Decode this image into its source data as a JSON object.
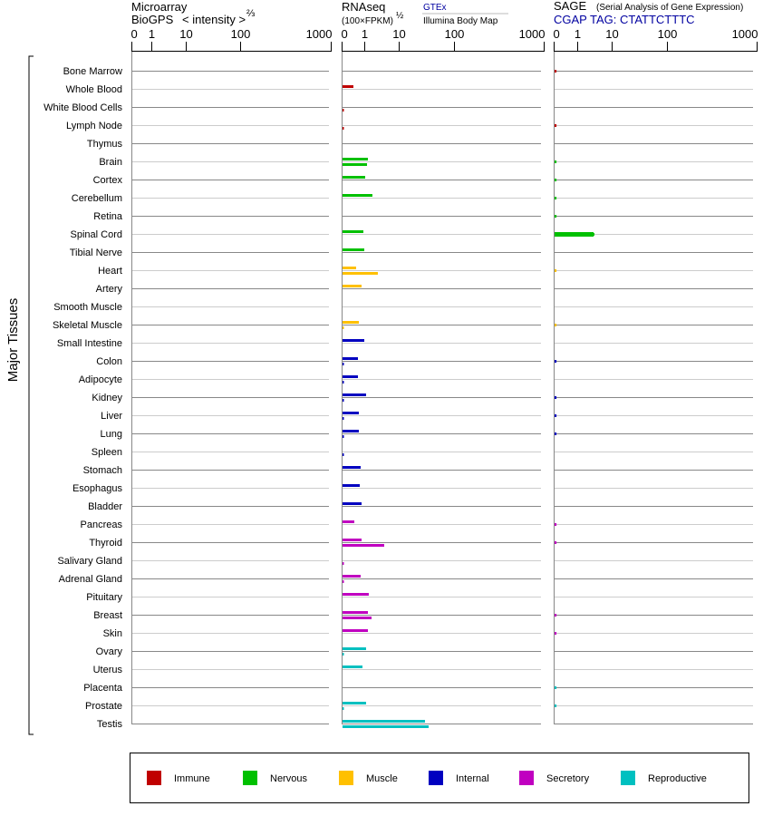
{
  "chart_data": {
    "type": "bar",
    "ylabel": "Major Tissues",
    "categories": [
      "Bone Marrow",
      "Whole Blood",
      "White Blood Cells",
      "Lymph Node",
      "Thymus",
      "Brain",
      "Cortex",
      "Cerebellum",
      "Retina",
      "Spinal Cord",
      "Tibial Nerve",
      "Heart",
      "Artery",
      "Smooth Muscle",
      "Skeletal Muscle",
      "Small Intestine",
      "Colon",
      "Adipocyte",
      "Kidney",
      "Liver",
      "Lung",
      "Spleen",
      "Stomach",
      "Esophagus",
      "Bladder",
      "Pancreas",
      "Thyroid",
      "Salivary Gland",
      "Adrenal Gland",
      "Pituitary",
      "Breast",
      "Skin",
      "Ovary",
      "Uterus",
      "Placenta",
      "Prostate",
      "Testis"
    ],
    "groups": [
      "Immune",
      "Immune",
      "Immune",
      "Immune",
      "Immune",
      "Nervous",
      "Nervous",
      "Nervous",
      "Nervous",
      "Nervous",
      "Nervous",
      "Muscle",
      "Muscle",
      "Muscle",
      "Muscle",
      "Internal",
      "Internal",
      "Internal",
      "Internal",
      "Internal",
      "Internal",
      "Internal",
      "Internal",
      "Internal",
      "Internal",
      "Secretory",
      "Secretory",
      "Secretory",
      "Secretory",
      "Secretory",
      "Secretory",
      "Secretory",
      "Reproductive",
      "Reproductive",
      "Reproductive",
      "Reproductive",
      "Reproductive"
    ],
    "panels": {
      "microarray": {
        "title": "Microarray",
        "subtitle": "BioGPS",
        "scale_label": "< intensity >",
        "scale_exp": "⅔",
        "ticks": [
          "0",
          "1",
          "10",
          "100",
          "1000"
        ],
        "tick_values": [
          0,
          1,
          10,
          100,
          1000
        ],
        "values": [
          null,
          null,
          null,
          null,
          null,
          null,
          null,
          null,
          null,
          null,
          null,
          null,
          null,
          null,
          null,
          null,
          null,
          null,
          null,
          null,
          null,
          null,
          null,
          null,
          null,
          null,
          null,
          null,
          null,
          null,
          null,
          null,
          null,
          null,
          null,
          null,
          null
        ]
      },
      "rnaseq": {
        "title": "RNAseq",
        "unit": "(100×FPKM)",
        "unit_exp": "½",
        "ticks": [
          "0",
          "1",
          "10",
          "100",
          "1000"
        ],
        "tick_values": [
          0,
          1,
          10,
          100,
          1000
        ],
        "series": [
          {
            "name": "GTEx",
            "values": [
              null,
              0.48,
              null,
              null,
              null,
              1.2,
              1.0,
              1.62,
              null,
              0.92,
              0.96,
              0.6,
              0.84,
              null,
              0.72,
              0.96,
              0.68,
              0.68,
              1.06,
              0.72,
              0.72,
              null,
              0.8,
              0.76,
              0.84,
              0.52,
              0.84,
              null,
              0.8,
              1.27,
              1.2,
              1.2,
              1.06,
              0.88,
              null,
              1.06,
              28.8
            ]
          },
          {
            "name": "Illumina Body Map",
            "values": [
              null,
              null,
              0.06,
              0.06,
              null,
              1.13,
              null,
              null,
              null,
              null,
              null,
              2.33,
              null,
              null,
              0.06,
              null,
              0.06,
              0.06,
              0.06,
              0.06,
              0.06,
              0.06,
              null,
              null,
              null,
              null,
              3.57,
              0.06,
              0.06,
              null,
              1.53,
              null,
              0.06,
              null,
              null,
              0.06,
              33.5
            ]
          }
        ]
      },
      "sage": {
        "title": "SAGE",
        "subtitle": "(Serial Analysis of Gene Expression)",
        "tag": "CGAP TAG: CTATTCTTTC",
        "ticks": [
          "0",
          "1",
          "10",
          "100",
          "1000"
        ],
        "tick_values": [
          0,
          1,
          10,
          100,
          1000
        ],
        "values": [
          0.08,
          null,
          null,
          0.08,
          null,
          0.08,
          0.08,
          0.08,
          0.08,
          2.8,
          null,
          0.08,
          null,
          null,
          0.08,
          null,
          0.08,
          null,
          0.08,
          0.08,
          0.08,
          null,
          null,
          null,
          null,
          0.08,
          0.08,
          null,
          null,
          null,
          0.08,
          0.08,
          null,
          null,
          0.08,
          0.08,
          null
        ]
      }
    },
    "legend": [
      {
        "label": "Immune",
        "color": "#c00000"
      },
      {
        "label": "Nervous",
        "color": "#00c000"
      },
      {
        "label": "Muscle",
        "color": "#ffc000"
      },
      {
        "label": "Internal",
        "color": "#0000c0"
      },
      {
        "label": "Secretory",
        "color": "#c000c0"
      },
      {
        "label": "Reproductive",
        "color": "#00c0c0"
      }
    ],
    "legend_position": "bottom"
  }
}
